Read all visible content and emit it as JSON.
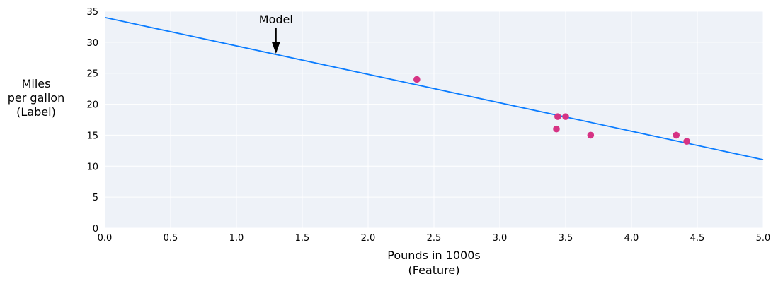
{
  "chart_data": {
    "type": "scatter",
    "title": "",
    "xlabel": [
      "Pounds in 1000s",
      "(Feature)"
    ],
    "ylabel": [
      "Miles",
      "per gallon",
      "(Label)"
    ],
    "xlim": [
      0,
      5
    ],
    "ylim": [
      0,
      35
    ],
    "xticks": [
      "0.0",
      "0.5",
      "1.0",
      "1.5",
      "2.0",
      "2.5",
      "3.0",
      "3.5",
      "4.0",
      "4.5",
      "5.0"
    ],
    "yticks": [
      "0",
      "5",
      "10",
      "15",
      "20",
      "25",
      "30",
      "35"
    ],
    "grid": true,
    "points": [
      {
        "x": 2.37,
        "y": 24
      },
      {
        "x": 3.44,
        "y": 18
      },
      {
        "x": 3.5,
        "y": 18
      },
      {
        "x": 3.43,
        "y": 16
      },
      {
        "x": 3.69,
        "y": 15
      },
      {
        "x": 4.34,
        "y": 15
      },
      {
        "x": 4.42,
        "y": 14
      }
    ],
    "model_line": {
      "x": [
        0,
        5
      ],
      "y": [
        34,
        11.05
      ]
    },
    "annotation": {
      "text": "Model",
      "x": 1.3
    },
    "colors": {
      "points": "#d63384",
      "line": "#0a7cff",
      "background": "#eef2f8",
      "grid": "#ffffff"
    }
  }
}
